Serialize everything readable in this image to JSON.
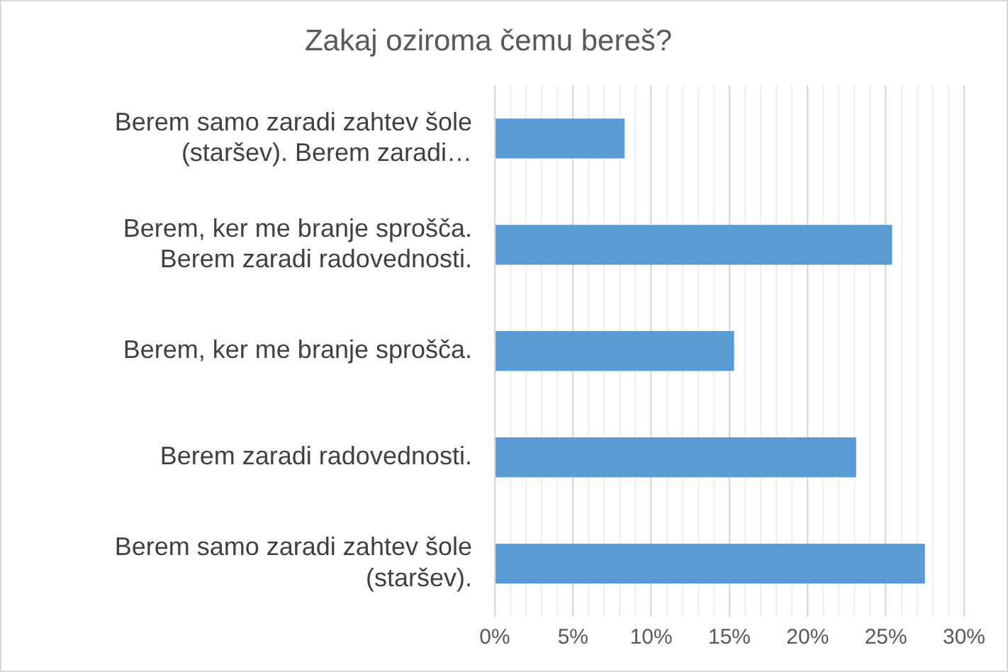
{
  "chart_data": {
    "type": "bar",
    "orientation": "horizontal",
    "title": "Zakaj oziroma čemu bereš?",
    "categories": [
      "Berem samo zaradi zahtev šole (staršev). Berem zaradi…",
      "Berem, ker me branje sprošča. Berem zaradi radovednosti.",
      "Berem, ker me branje sprošča.",
      "Berem zaradi radovednosti.",
      "Berem samo zaradi zahtev šole (staršev)."
    ],
    "values": [
      8.3,
      25.4,
      15.3,
      23.1,
      27.5
    ],
    "color": "#5b9bd5",
    "xlim": [
      0,
      30
    ],
    "xticks": [
      {
        "value": 0,
        "label": "0%"
      },
      {
        "value": 1,
        "label": null
      },
      {
        "value": 2,
        "label": null
      },
      {
        "value": 3,
        "label": null
      },
      {
        "value": 4,
        "label": null
      },
      {
        "value": 5,
        "label": "5%"
      },
      {
        "value": 6,
        "label": null
      },
      {
        "value": 7,
        "label": null
      },
      {
        "value": 8,
        "label": null
      },
      {
        "value": 9,
        "label": null
      },
      {
        "value": 10,
        "label": "10%"
      },
      {
        "value": 11,
        "label": null
      },
      {
        "value": 12,
        "label": null
      },
      {
        "value": 13,
        "label": null
      },
      {
        "value": 14,
        "label": null
      },
      {
        "value": 15,
        "label": "15%"
      },
      {
        "value": 16,
        "label": null
      },
      {
        "value": 17,
        "label": null
      },
      {
        "value": 18,
        "label": null
      },
      {
        "value": 19,
        "label": null
      },
      {
        "value": 20,
        "label": "20%"
      },
      {
        "value": 21,
        "label": null
      },
      {
        "value": 22,
        "label": null
      },
      {
        "value": 23,
        "label": null
      },
      {
        "value": 24,
        "label": null
      },
      {
        "value": 25,
        "label": "25%"
      },
      {
        "value": 26,
        "label": null
      },
      {
        "value": 27,
        "label": null
      },
      {
        "value": 28,
        "label": null
      },
      {
        "value": 29,
        "label": null
      },
      {
        "value": 30,
        "label": "30%"
      }
    ],
    "grid": "x",
    "legend": false
  }
}
